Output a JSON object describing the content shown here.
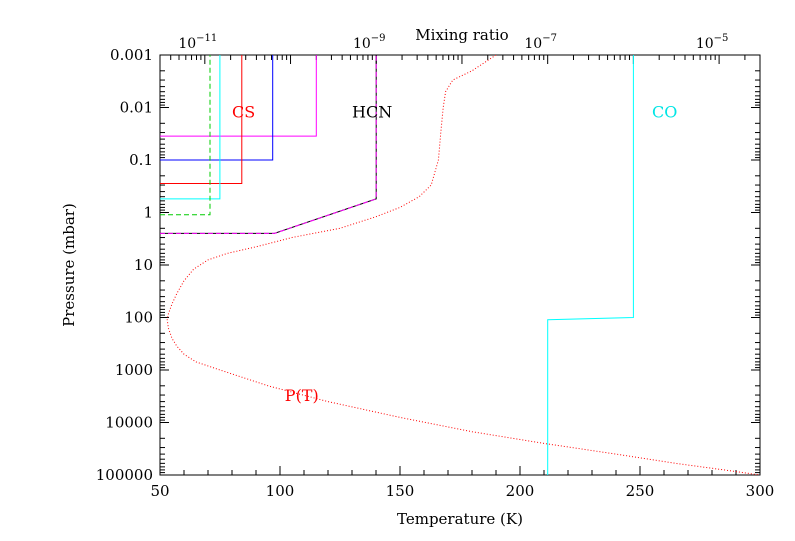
{
  "chart_data": {
    "type": "line",
    "title": "",
    "xlabel": "Temperature (K)",
    "ylabel": "Pressure (mbar)",
    "x2label": "Mixing ratio",
    "xlim": [
      50,
      300
    ],
    "ylim": [
      0.001,
      100000
    ],
    "yscale": "log",
    "y_reversed": true,
    "x2lim": [
      3e-12,
      3e-05
    ],
    "x2scale": "log",
    "grid": false,
    "x_ticks": [
      "50",
      "100",
      "150",
      "200",
      "250",
      "300"
    ],
    "y_ticks": [
      "0.001",
      "0.01",
      "0.1",
      "1",
      "10",
      "100",
      "1000",
      "10000",
      "100000"
    ],
    "x2_ticks": [
      {
        "value": 1e-11,
        "base": "10",
        "exp": "−11"
      },
      {
        "value": 1e-09,
        "base": "10",
        "exp": "−9"
      },
      {
        "value": 1e-07,
        "base": "10",
        "exp": "−7"
      },
      {
        "value": 1e-05,
        "base": "10",
        "exp": "−5"
      }
    ],
    "annotations": [
      {
        "text": "CS",
        "color": "#ff0000",
        "x": 80,
        "y": 0.012
      },
      {
        "text": "HCN",
        "color": "#000000",
        "x": 130,
        "y": 0.012
      },
      {
        "text": "CO",
        "color": "#00e5e5",
        "x": 255,
        "y": 0.012
      },
      {
        "text": "P(T)",
        "color": "#ff0000",
        "x": 102,
        "y": 3000
      }
    ],
    "series": [
      {
        "name": "P(T)",
        "color": "#ff0000",
        "dash": "dotted",
        "axis": "temperature",
        "x": [
          190,
          180,
          172,
          169,
          168,
          167,
          166,
          163,
          158,
          150,
          140,
          125,
          105,
          90,
          78,
          70,
          64,
          60,
          57,
          55,
          53.5,
          53,
          53.5,
          55,
          57,
          60,
          65,
          75,
          95,
          120,
          150,
          180,
          210,
          240,
          265,
          285,
          300
        ],
        "y": [
          0.001,
          0.002,
          0.003,
          0.005,
          0.01,
          0.03,
          0.1,
          0.3,
          0.5,
          0.8,
          1.2,
          2,
          3,
          4.5,
          6,
          8,
          12,
          20,
          35,
          55,
          85,
          110,
          160,
          250,
          350,
          500,
          700,
          1000,
          2000,
          4000,
          8000,
          15000,
          25000,
          40000,
          60000,
          80000,
          100000
        ]
      },
      {
        "name": "",
        "color": "#ff00ff",
        "dash": "solid",
        "axis": "mixing",
        "x": [
          3e-12,
          2e-10,
          2e-10
        ],
        "y": [
          0.035,
          0.035,
          0.001
        ]
      },
      {
        "name": "",
        "color": "#0000ff",
        "dash": "solid",
        "axis": "mixing",
        "x": [
          3e-12,
          6.2e-11,
          6.2e-11
        ],
        "y": [
          0.1,
          0.1,
          0.001
        ]
      },
      {
        "name": "",
        "color": "#ff0000",
        "dash": "solid",
        "axis": "mixing",
        "x": [
          3e-12,
          2.7e-11,
          2.7e-11
        ],
        "y": [
          0.28,
          0.28,
          0.001
        ]
      },
      {
        "name": "",
        "color": "#00ffff",
        "dash": "solid",
        "axis": "mixing",
        "x": [
          3e-12,
          1.5e-11,
          1.5e-11
        ],
        "y": [
          0.55,
          0.55,
          0.001
        ]
      },
      {
        "name": "",
        "color": "#00cc00",
        "dash": "dashed",
        "axis": "mixing",
        "x": [
          3e-12,
          1.15e-11,
          1.15e-11
        ],
        "y": [
          1.1,
          1.1,
          0.001
        ]
      },
      {
        "name": "",
        "color": "#000000",
        "dash": "solid",
        "axis": "mixing",
        "x": [
          3e-12,
          6.5e-11,
          1e-09,
          1e-09
        ],
        "y": [
          2.5,
          2.5,
          0.55,
          0.001
        ]
      },
      {
        "name": "",
        "color": "#ff00ff",
        "dash": "dashed",
        "axis": "mixing",
        "x": [
          3e-12,
          6.5e-11,
          1e-09,
          1e-09
        ],
        "y": [
          2.5,
          2.5,
          0.55,
          0.001
        ]
      },
      {
        "name": "",
        "color": "#00ffff",
        "dash": "solid",
        "axis": "mixing",
        "x": [
          1e-06,
          1e-06,
          1e-07,
          1e-07
        ],
        "y": [
          0.001,
          100,
          110,
          100000
        ]
      }
    ]
  }
}
